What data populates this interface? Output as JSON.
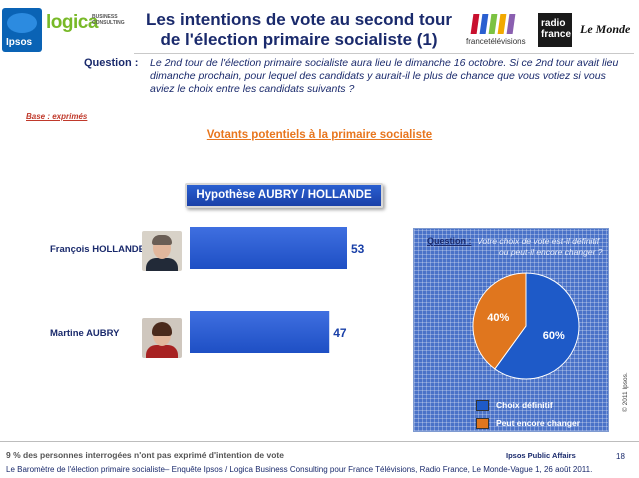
{
  "header": {
    "title_line1": "Les intentions de vote au second tour",
    "title_line2": "de l'élection primaire socialiste (1)",
    "ipsos_logo": "Ipsos",
    "logica_logo": "logica",
    "logica_sub": "BUSINESS CONSULTING",
    "ftv_logo": "francetélévisions",
    "radio_logo_line1": "radio",
    "radio_logo_line2": "france",
    "lemonde_logo": "Le Monde"
  },
  "question": {
    "label": "Question :",
    "text": "Le 2nd tour de l'élection primaire socialiste aura lieu le dimanche 16 octobre. Si ce 2nd tour avait lieu dimanche prochain, pour lequel des candidats y aurait-il le plus de chance que vous votiez si vous aviez le choix entre les candidats suivants ?"
  },
  "base_note": "Base : exprimés",
  "subtitle": "Votants potentiels à la primaire socialiste",
  "hypothesis": "Hypothèse AUBRY / HOLLANDE",
  "colors": {
    "bar": "#1e4fc4",
    "pie_definitive": "#1e5ac8",
    "pie_change": "#e0761e",
    "title": "#1a2a6c",
    "accent": "#e8761e"
  },
  "chart_data": [
    {
      "type": "bar",
      "orientation": "horizontal",
      "categories": [
        "François HOLLANDE",
        "Martine AUBRY"
      ],
      "values": [
        53,
        47
      ],
      "xlim": [
        0,
        60
      ],
      "grid": false,
      "legend": "none"
    },
    {
      "type": "pie",
      "question_label": "Question :",
      "question_text_line1": "Votre choix de vote est-il définitif",
      "question_text_line2": "ou peut-il encore changer ?",
      "labels": [
        "Choix définitif",
        "Peut encore changer"
      ],
      "values": [
        60,
        40
      ],
      "value_labels": [
        "60%",
        "40%"
      ],
      "legend": "bottom"
    }
  ],
  "copyright": "© 2011 Ipsos.",
  "footer": {
    "note": "9 % des personnes interrogées n'ont pas exprimé d'intention de vote",
    "brand": "Ipsos Public Affairs",
    "page": "18",
    "source": "Le Baromètre de l'élection primaire socialiste– Enquête Ipsos / Logica Business Consulting pour France Télévisions, Radio France, Le Monde-Vague 1, 26 août 2011."
  }
}
